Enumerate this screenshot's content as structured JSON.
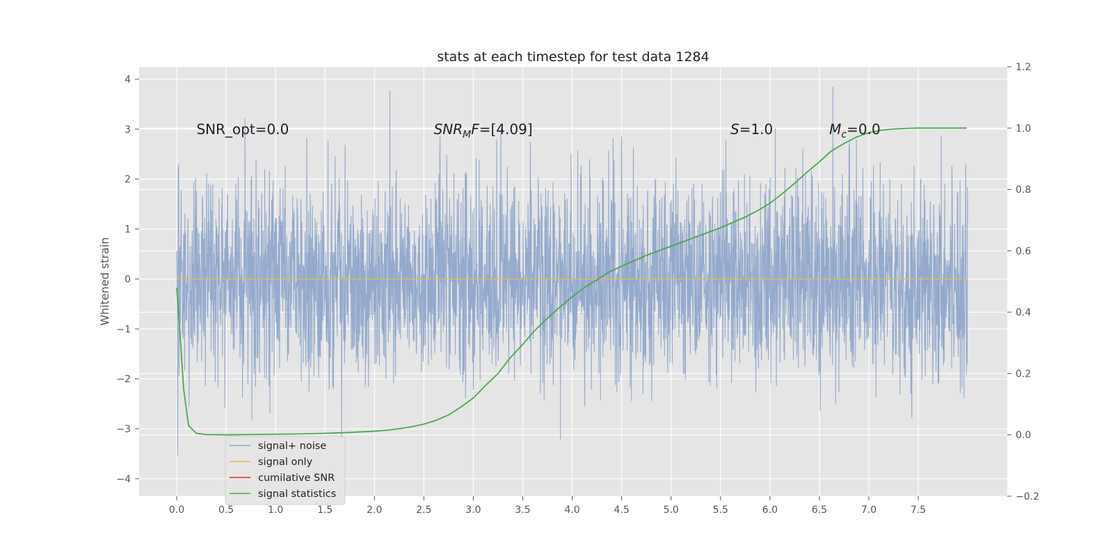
{
  "chart_data": {
    "type": "line",
    "title": "stats at each timestep for test data 1284",
    "ylabel": "Whitened strain",
    "xlim": [
      -0.38,
      8.4
    ],
    "ylim": [
      -4.35,
      4.25
    ],
    "y2lim": [
      -0.2,
      1.2
    ],
    "x_ticks": [
      0.0,
      0.5,
      1.0,
      1.5,
      2.0,
      2.5,
      3.0,
      3.5,
      4.0,
      4.5,
      5.0,
      5.5,
      6.0,
      6.5,
      7.0,
      7.5
    ],
    "x_tick_labels": [
      "0.0",
      "0.5",
      "1.0",
      "1.5",
      "2.0",
      "2.5",
      "3.0",
      "3.5",
      "4.0",
      "4.5",
      "5.0",
      "5.5",
      "6.0",
      "6.5",
      "7.0",
      "7.5"
    ],
    "y_ticks": [
      -4,
      -3,
      -2,
      -1,
      0,
      1,
      2,
      3,
      4
    ],
    "y_tick_labels": [
      "−4",
      "−3",
      "−2",
      "−1",
      "0",
      "1",
      "2",
      "3",
      "4"
    ],
    "y2_ticks": [
      -0.2,
      0.0,
      0.2,
      0.4,
      0.6,
      0.8,
      1.0,
      1.2
    ],
    "y2_tick_labels": [
      "−0.2",
      "0.0",
      "0.2",
      "0.4",
      "0.6",
      "0.8",
      "1.0",
      "1.2"
    ],
    "grid": true,
    "legend_position": "lower-left",
    "annotations": [
      {
        "id": "snr-opt",
        "text": "SNR_opt=0.0",
        "x": 0.2,
        "y": 3.0
      },
      {
        "id": "snr-mf",
        "text": "SNR_MF=[4.09]",
        "x": 2.6,
        "y": 3.0
      },
      {
        "id": "s",
        "text": "S=1.0",
        "x": 5.6,
        "y": 3.0
      },
      {
        "id": "mc",
        "text": "M_c=0.0",
        "x": 6.6,
        "y": 3.0
      }
    ],
    "series": [
      {
        "name": "signal+ noise",
        "color": "#8fa6cb",
        "axis": "left",
        "x_start": 0.0,
        "x_end": 8.0,
        "stddev": 1.0,
        "note_values": "dense noise trace, values approx. between -4.0 and 3.9"
      },
      {
        "name": "signal only",
        "color": "#f2b550",
        "axis": "left",
        "x": [
          0.0,
          8.0
        ],
        "y": [
          0.0,
          0.0
        ]
      },
      {
        "name": "cumilative SNR",
        "color": "#e0301e",
        "axis": "left",
        "x": [],
        "y": []
      },
      {
        "name": "signal statistics",
        "color": "#4aa84a",
        "axis": "right",
        "x": [
          0.0,
          0.03,
          0.07,
          0.12,
          0.2,
          0.3,
          0.5,
          0.75,
          1.0,
          1.25,
          1.5,
          1.75,
          2.0,
          2.12,
          2.25,
          2.37,
          2.5,
          2.62,
          2.75,
          2.87,
          3.0,
          3.12,
          3.25,
          3.37,
          3.5,
          3.62,
          3.75,
          3.87,
          4.0,
          4.12,
          4.25,
          4.37,
          4.5,
          4.75,
          5.0,
          5.25,
          5.5,
          5.62,
          5.75,
          5.87,
          6.0,
          6.12,
          6.25,
          6.37,
          6.5,
          6.62,
          6.75,
          6.87,
          7.0,
          7.12,
          7.25,
          7.37,
          7.5,
          7.75,
          7.99
        ],
        "y": [
          0.48,
          0.35,
          0.15,
          0.03,
          0.005,
          0.001,
          0.0,
          0.001,
          0.002,
          0.003,
          0.005,
          0.008,
          0.012,
          0.015,
          0.02,
          0.026,
          0.035,
          0.047,
          0.065,
          0.09,
          0.12,
          0.16,
          0.2,
          0.25,
          0.295,
          0.34,
          0.38,
          0.415,
          0.45,
          0.48,
          0.505,
          0.53,
          0.55,
          0.585,
          0.615,
          0.645,
          0.675,
          0.692,
          0.71,
          0.73,
          0.755,
          0.785,
          0.82,
          0.855,
          0.89,
          0.925,
          0.95,
          0.97,
          0.985,
          0.993,
          0.997,
          0.999,
          1.0,
          1.0,
          1.0
        ]
      }
    ]
  }
}
